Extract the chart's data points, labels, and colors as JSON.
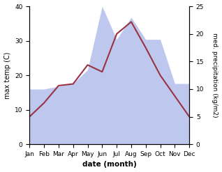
{
  "months": [
    "Jan",
    "Feb",
    "Mar",
    "Apr",
    "May",
    "Jun",
    "Jul",
    "Aug",
    "Sep",
    "Oct",
    "Nov",
    "Dec"
  ],
  "temp": [
    8.0,
    12.0,
    17.0,
    17.5,
    23.0,
    21.0,
    32.0,
    35.5,
    28.0,
    20.0,
    14.0,
    8.0
  ],
  "precip": [
    10.0,
    10.0,
    10.5,
    11.0,
    13.5,
    25.0,
    19.0,
    23.0,
    19.0,
    19.0,
    11.0,
    11.0
  ],
  "temp_color": "#993344",
  "precip_fill_color": "#bec8ef",
  "left_ylim": [
    0,
    40
  ],
  "right_ylim": [
    0,
    25
  ],
  "left_ylabel": "max temp (C)",
  "right_ylabel": "med. precipitation (kg/m2)",
  "xlabel": "date (month)",
  "left_yticks": [
    0,
    10,
    20,
    30,
    40
  ],
  "right_yticks": [
    0,
    5,
    10,
    15,
    20,
    25
  ],
  "background_color": "#ffffff"
}
